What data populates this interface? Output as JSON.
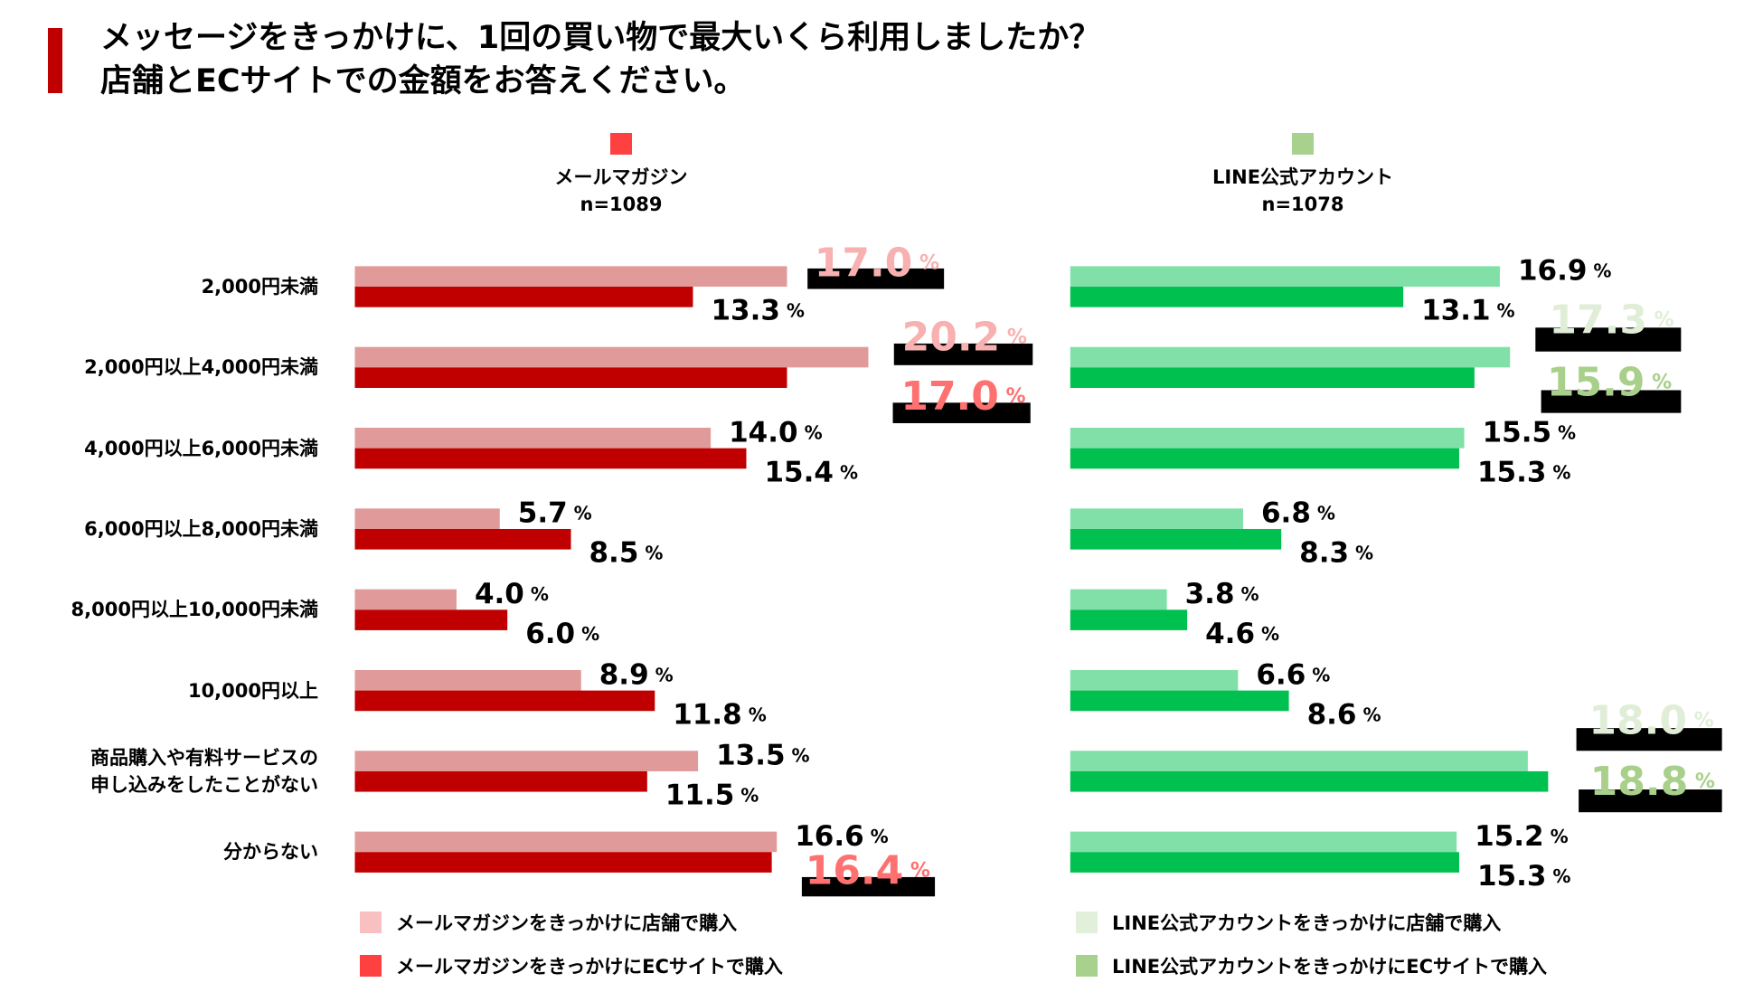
{
  "title": {
    "line1": "メッセージをきっかけに、1回の買い物で最大いくら利用しましたか？",
    "line2": "店舗とECサイトでの金額をお答えください。"
  },
  "colors": {
    "title_accent": "#c00000",
    "mail_store": "#e09a9a",
    "mail_ec": "#c00000",
    "line_store": "#80e0a8",
    "line_ec": "#00c050",
    "mail_head": "#ff4040",
    "line_head": "#a9d18e",
    "mail_legend_store": "#f8c0c0",
    "mail_legend_ec": "#ff4040",
    "line_legend_store": "#e2efda",
    "line_legend_ec": "#a9d18e"
  },
  "chart_data": {
    "type": "bar",
    "orientation": "horizontal",
    "unit": "%",
    "categories": [
      "2,000円未満",
      "2,000円以上4,000円未満",
      "4,000円以上6,000円未満",
      "6,000円以上8,000円未満",
      "8,000円以上10,000円未満",
      "10,000円以上",
      "商品購入や有料サービスの申し込みをしたことがない",
      "分からない"
    ],
    "category_lines": [
      [
        "2,000円未満"
      ],
      [
        "2,000円以上4,000円未満"
      ],
      [
        "4,000円以上6,000円未満"
      ],
      [
        "6,000円以上8,000円未満"
      ],
      [
        "8,000円以上10,000円未満"
      ],
      [
        "10,000円以上"
      ],
      [
        "商品購入や有料サービスの",
        "申し込みをしたことがない"
      ],
      [
        "分からない"
      ]
    ],
    "panels": [
      {
        "name": "メールマガジン",
        "n": "n=1089",
        "series": [
          {
            "name": "メールマガジンをきっかけに店舗で購入",
            "values": [
              17.0,
              20.2,
              14.0,
              5.7,
              4.0,
              8.9,
              13.5,
              16.6
            ],
            "highlight": [
              0,
              1
            ]
          },
          {
            "name": "メールマガジンをきっかけにECサイトで購入",
            "values": [
              13.3,
              17.0,
              15.4,
              8.5,
              6.0,
              11.8,
              11.5,
              16.4
            ],
            "highlight": [
              1,
              7
            ]
          }
        ]
      },
      {
        "name": "LINE公式アカウント",
        "n": "n=1078",
        "series": [
          {
            "name": "LINE公式アカウントをきっかけに店舗で購入",
            "values": [
              16.9,
              17.3,
              15.5,
              6.8,
              3.8,
              6.6,
              18.0,
              15.2
            ],
            "highlight": [
              1,
              6
            ]
          },
          {
            "name": "LINE公式アカウントをきっかけにECサイトで購入",
            "values": [
              13.1,
              15.9,
              15.3,
              8.3,
              4.6,
              8.6,
              18.8,
              15.3
            ],
            "highlight": [
              1,
              6
            ]
          }
        ]
      }
    ],
    "xlim": [
      0,
      21
    ],
    "grid": false,
    "legend_position": "bottom"
  }
}
